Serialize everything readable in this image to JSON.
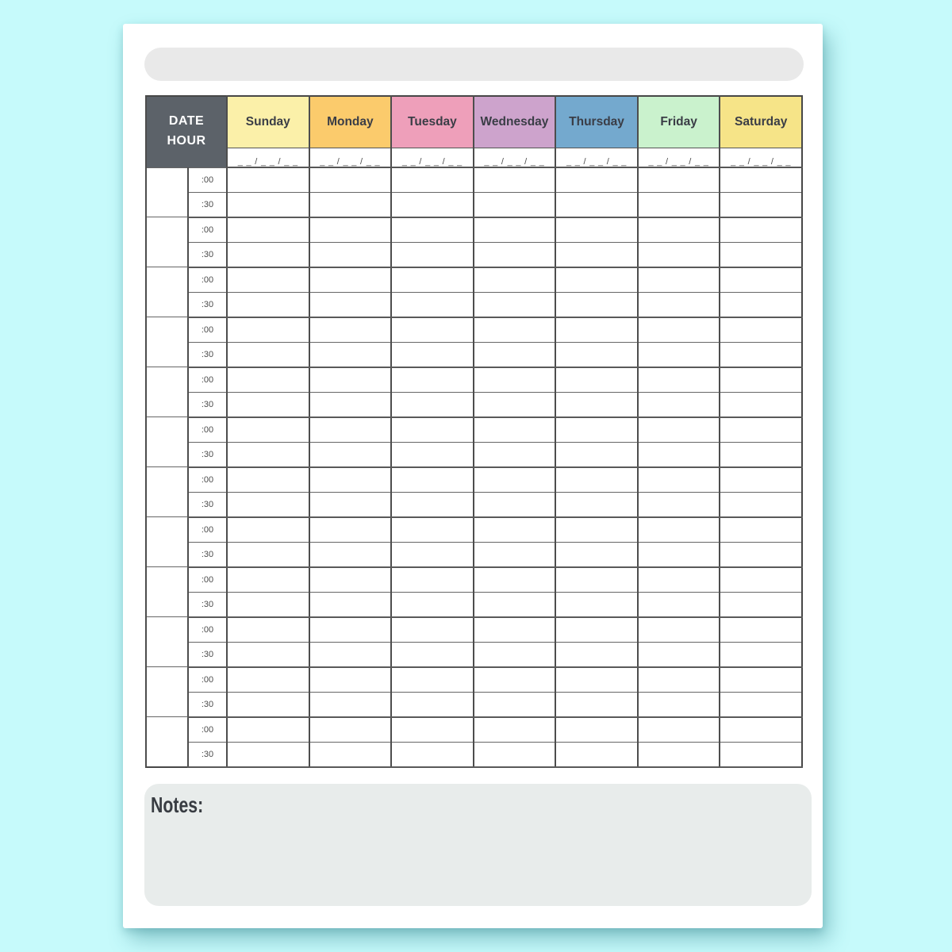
{
  "title_bar": {
    "value": ""
  },
  "table": {
    "corner": {
      "line1": "DATE",
      "line2": "HOUR"
    },
    "days": [
      {
        "label": "Sunday",
        "color": "#FBF0A9"
      },
      {
        "label": "Monday",
        "color": "#FBCB6C"
      },
      {
        "label": "Tuesday",
        "color": "#EE9FBA"
      },
      {
        "label": "Wednesday",
        "color": "#CDA3CC"
      },
      {
        "label": "Thursday",
        "color": "#74A9CE"
      },
      {
        "label": "Friday",
        "color": "#CAF2CD"
      },
      {
        "label": "Saturday",
        "color": "#F6E488"
      }
    ],
    "date_placeholder": "_ _ / _ _ / _ _",
    "time_labels": [
      ":00",
      ":30"
    ],
    "hour_blocks": 12
  },
  "notes": {
    "label": "Notes:"
  },
  "colors": {
    "background": "#C6FAFB",
    "page": "#FFFFFF",
    "title_bar": "#E9E9E9",
    "corner_cell": "#5C6269",
    "grid_line": "#666666",
    "day_text": "#3A3D46",
    "notes_box": "#E8ECEB",
    "notes_text": "#383C42"
  }
}
